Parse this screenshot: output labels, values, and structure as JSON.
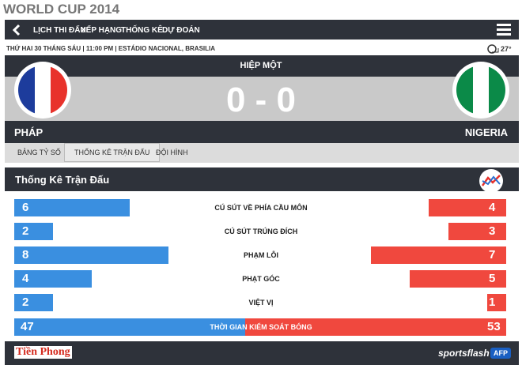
{
  "header": {
    "title": "WORLD CUP 2014"
  },
  "nav": {
    "items": [
      "LỊCH THI ĐẤU",
      "XẾP HẠNG",
      "THỐNG KÊ",
      "DỰ ĐOÁN"
    ]
  },
  "match": {
    "info": "THỨ HAI 30 THÁNG SÁU | 11:00 PM | ESTÁDIO NACIONAL, BRASILIA",
    "temperature": "27°",
    "period": "HIỆP MỘT",
    "score": "0 - 0",
    "home": "PHÁP",
    "away": "NIGERIA"
  },
  "tabs": {
    "items": [
      "BẢNG TỶ SỐ",
      "THỐNG KÊ TRẬN ĐẤU",
      "ĐỘI HÌNH"
    ],
    "selected": 1
  },
  "stats": {
    "title": "Thống Kê Trận Đấu",
    "home_color": "#3a8fe0",
    "away_color": "#f0483e",
    "rows": [
      {
        "label": "CÚ SÚT VỀ PHÍA CẦU MÔN",
        "home": 6,
        "away": 4
      },
      {
        "label": "CÚ SÚT TRÚNG ĐÍCH",
        "home": 2,
        "away": 3
      },
      {
        "label": "PHẠM LỖI",
        "home": 8,
        "away": 7
      },
      {
        "label": "PHẠT GÓC",
        "home": 4,
        "away": 5
      },
      {
        "label": "VIỆT VỊ",
        "home": 2,
        "away": 1
      }
    ],
    "possession": {
      "label": "THỜI GIAN KIỂM SOÁT BÓNG",
      "home": 47,
      "away": 53
    }
  },
  "footer": {
    "brand": "Tiền Phong",
    "partner": "sportsflash",
    "agency": "AFP"
  }
}
